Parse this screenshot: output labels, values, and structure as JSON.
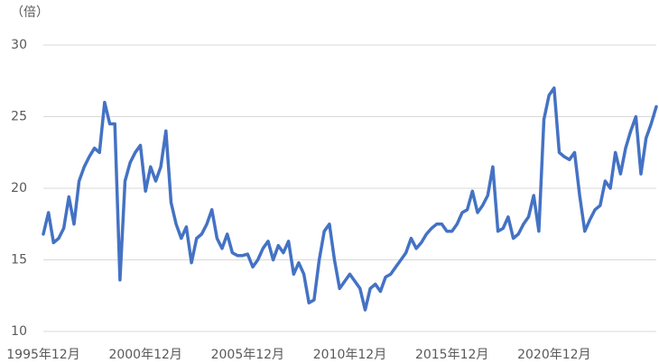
{
  "chart_data": {
    "type": "line",
    "y_label": "（倍）",
    "categories": [
      "1995年12月",
      null,
      null,
      null,
      null,
      null,
      null,
      null,
      null,
      null,
      null,
      null,
      null,
      null,
      null,
      null,
      null,
      null,
      null,
      null,
      "2000年12月",
      null,
      null,
      null,
      null,
      null,
      null,
      null,
      null,
      null,
      null,
      null,
      null,
      null,
      null,
      null,
      null,
      null,
      null,
      null,
      "2005年12月",
      null,
      null,
      null,
      null,
      null,
      null,
      null,
      null,
      null,
      null,
      null,
      null,
      null,
      null,
      null,
      null,
      null,
      null,
      null,
      "2010年12月",
      null,
      null,
      null,
      null,
      null,
      null,
      null,
      null,
      null,
      null,
      null,
      null,
      null,
      null,
      null,
      null,
      null,
      null,
      null,
      "2015年12月",
      null,
      null,
      null,
      null,
      null,
      null,
      null,
      null,
      null,
      null,
      null,
      null,
      null,
      null,
      null,
      null,
      null,
      null,
      null,
      "2020年12月",
      null,
      null,
      null,
      null,
      null,
      null,
      null,
      null,
      null,
      null,
      null,
      null,
      null,
      null,
      null,
      null,
      null,
      null,
      null,
      null
    ],
    "values": [
      16.8,
      18.3,
      16.2,
      16.5,
      17.2,
      19.4,
      17.5,
      20.5,
      21.5,
      22.2,
      22.8,
      22.5,
      26.0,
      24.5,
      24.5,
      13.6,
      20.5,
      21.8,
      22.5,
      23.0,
      19.8,
      21.5,
      20.5,
      21.5,
      24.0,
      19.0,
      17.5,
      16.5,
      17.3,
      14.8,
      16.5,
      16.8,
      17.5,
      18.5,
      16.5,
      15.8,
      16.8,
      15.5,
      15.3,
      15.3,
      15.4,
      14.5,
      15.0,
      15.8,
      16.3,
      15.0,
      16.0,
      15.5,
      16.3,
      14.0,
      14.8,
      14.0,
      12.0,
      12.2,
      15.0,
      17.0,
      17.5,
      15.0,
      13.0,
      13.5,
      14.0,
      13.5,
      13.0,
      11.5,
      13.0,
      13.3,
      12.8,
      13.8,
      14.0,
      14.5,
      15.0,
      15.5,
      16.5,
      15.8,
      16.2,
      16.8,
      17.2,
      17.5,
      17.5,
      17.0,
      17.0,
      17.5,
      18.3,
      18.5,
      19.8,
      18.3,
      18.8,
      19.5,
      21.5,
      17.0,
      17.2,
      18.0,
      16.5,
      16.8,
      17.5,
      18.0,
      19.5,
      17.0,
      24.8,
      26.5,
      27.0,
      22.5,
      22.2,
      22.0,
      22.5,
      19.5,
      17.0,
      17.8,
      18.5,
      18.8,
      20.5,
      20.0,
      22.5,
      21.0,
      22.8,
      24.0,
      25.0,
      21.0,
      23.5,
      24.5,
      25.7
    ],
    "color": "#4472c4",
    "ylim": [
      10,
      30
    ],
    "yticks": [
      10,
      15,
      20,
      25,
      30
    ],
    "grid": true
  }
}
